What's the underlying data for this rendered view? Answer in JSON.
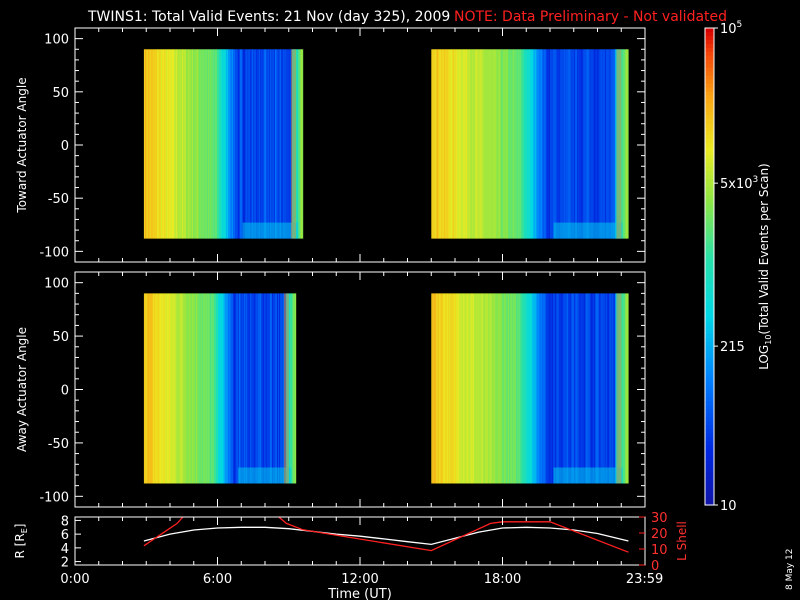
{
  "title": "TWINS1: Total Valid Events: 21 Nov (day 325), 2009",
  "note": "NOTE: Data Preliminary - Not validated",
  "stamp": "8 May 12",
  "colors": {
    "background": "#000000",
    "axes": "#ffffff",
    "note": "#ff2020",
    "r_line": "#ffffff",
    "l_line": "#ff2020"
  },
  "chart_data": [
    {
      "type": "heatmap",
      "id": "toward",
      "ylabel": "Toward Actuator Angle",
      "ylim": [
        -110,
        110
      ],
      "yticks": [
        100,
        50,
        0,
        -50,
        -100
      ],
      "xlim": [
        0,
        24
      ],
      "intervals_hours": [
        [
          2.9,
          9.6
        ],
        [
          15.0,
          23.3
        ]
      ],
      "angle_range": [
        -88,
        90
      ]
    },
    {
      "type": "heatmap",
      "id": "away",
      "ylabel": "Away Actuator Angle",
      "ylim": [
        -110,
        110
      ],
      "yticks": [
        100,
        50,
        0,
        -50,
        -100
      ],
      "xlim": [
        0,
        24
      ],
      "intervals_hours": [
        [
          2.9,
          9.3
        ],
        [
          15.0,
          23.3
        ]
      ],
      "angle_range": [
        -88,
        90
      ]
    },
    {
      "type": "line",
      "id": "orbit",
      "xlabel": "Time (UT)",
      "xlim": [
        0,
        24
      ],
      "xticks": [
        0,
        6,
        12,
        18,
        23.983
      ],
      "xtick_labels": [
        "0:00",
        "6:00",
        "12:00",
        "18:00",
        "23:59"
      ],
      "left_axis": {
        "label": "R [RE]",
        "ylim": [
          1.5,
          8.5
        ],
        "ticks": [
          2,
          4,
          6,
          8
        ]
      },
      "right_axis": {
        "label": "L Shell",
        "ylim": [
          0,
          30
        ],
        "ticks": [
          0,
          10,
          20,
          30
        ]
      },
      "series": [
        {
          "axis": "left",
          "x": [
            2.9,
            4,
            5,
            6,
            7,
            8,
            9,
            10,
            11,
            12,
            13,
            14,
            15,
            16,
            17,
            18,
            19,
            20,
            21,
            22,
            23.3
          ],
          "y": [
            5.0,
            6.0,
            6.6,
            6.9,
            7.0,
            7.0,
            6.8,
            6.4,
            6.0,
            5.7,
            5.3,
            4.9,
            4.5,
            5.4,
            6.3,
            6.9,
            7.0,
            6.9,
            6.6,
            6.1,
            5.0
          ]
        },
        {
          "axis": "right",
          "x": [
            2.9,
            4.3,
            4.6,
            8.5,
            8.9,
            9.6,
            15.0,
            17.5,
            18.0,
            20.0,
            23.3
          ],
          "y": [
            12.0,
            26.0,
            31.0,
            31.0,
            26.0,
            22.0,
            9.0,
            26.0,
            27.0,
            27.0,
            8.0
          ]
        }
      ]
    },
    {
      "type": "colorbar",
      "id": "colorbar",
      "label": "LOG10(Total Valid Events per Scan)",
      "scale": "log",
      "range": [
        10,
        100000
      ],
      "tick_values": [
        100000,
        5000,
        215,
        10
      ],
      "tick_labels": [
        {
          "m": "10",
          "e": "5"
        },
        {
          "m": "5x10",
          "e": "3"
        },
        {
          "m": "215",
          "e": ""
        },
        {
          "m": "10",
          "e": ""
        }
      ]
    }
  ]
}
